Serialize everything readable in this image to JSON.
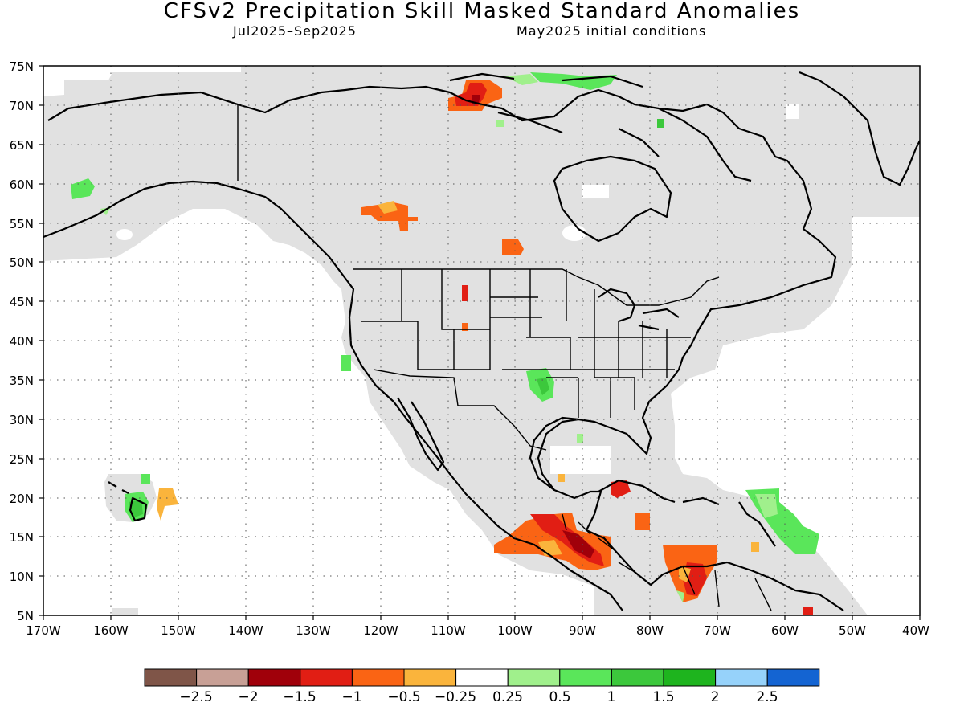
{
  "header": {
    "title": "CFSv2 Precipitation Skill Masked Standard Anomalies",
    "period": "Jul2025–Sep2025",
    "init": "May2025 initial conditions"
  },
  "map": {
    "lat_ticks": [
      "75N",
      "70N",
      "65N",
      "60N",
      "55N",
      "50N",
      "45N",
      "40N",
      "35N",
      "30N",
      "25N",
      "20N",
      "15N",
      "10N",
      "5N"
    ],
    "lon_ticks": [
      "170W",
      "160W",
      "150W",
      "140W",
      "130W",
      "120W",
      "110W",
      "100W",
      "90W",
      "80W",
      "70W",
      "60W",
      "50W",
      "40W"
    ],
    "lat_range": [
      5,
      75
    ],
    "lon_range": [
      -170,
      -40
    ],
    "gridlines": "dotted",
    "land_mask_color": "#e1e1e1",
    "coast_color": "#000000"
  },
  "colorbar": {
    "colors": [
      "#7f5548",
      "#c8a096",
      "#a0000a",
      "#e11e14",
      "#fa6414",
      "#fab43c",
      "#ffffff",
      "#a0f08c",
      "#5ae65a",
      "#3cc83c",
      "#1eb41e",
      "#96d2fa",
      "#1464d2"
    ],
    "labels": [
      "−2.5",
      "−2",
      "−1.5",
      "−1",
      "−0.5",
      "−0.25",
      "0.25",
      "0.5",
      "1",
      "1.5",
      "2",
      "2.5"
    ]
  }
}
